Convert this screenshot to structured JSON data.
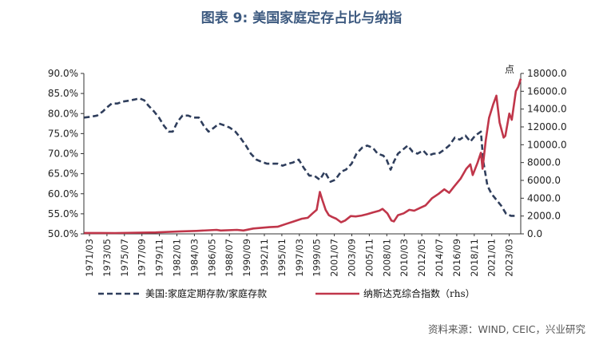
{
  "title": "图表 9:  美国家庭定存占比与纳指",
  "source": "资料来源：WIND, CEIC，兴业研究",
  "colors": {
    "deposit": "#2f3e5c",
    "nasdaq": "#c0364a",
    "title": "#3d5a80"
  },
  "chart_data": {
    "type": "line",
    "y_left": {
      "min": 50,
      "max": 90,
      "ticks": [
        "50.0%",
        "55.0%",
        "60.0%",
        "65.0%",
        "70.0%",
        "75.0%",
        "80.0%",
        "85.0%",
        "90.0%"
      ]
    },
    "y_right": {
      "min": 0,
      "max": 18000,
      "unit": "点",
      "ticks": [
        "0.0",
        "2000.0",
        "4000.0",
        "6000.0",
        "8000.0",
        "10000.0",
        "12000.0",
        "14000.0",
        "16000.0",
        "18000.0"
      ]
    },
    "x_ticks": [
      "1971/03",
      "1973/05",
      "1975/07",
      "1977/09",
      "1979/11",
      "1982/01",
      "1984/03",
      "1986/05",
      "1988/07",
      "1990/09",
      "1992/11",
      "1995/01",
      "1997/03",
      "1999/05",
      "2001/07",
      "2003/09",
      "2005/11",
      "2008/01",
      "2010/03",
      "2012/05",
      "2014/07",
      "2016/09",
      "2018/11",
      "2021/01",
      "2023/03"
    ],
    "x_range": [
      1971.17,
      2024.9
    ],
    "series": [
      {
        "name": "美国:家庭定期存款/家庭存款",
        "axis": "left",
        "style": "dashed",
        "x": [
          1971.2,
          1972.0,
          1972.8,
          1973.5,
          1974.0,
          1974.6,
          1975.3,
          1976.0,
          1976.7,
          1977.4,
          1978.0,
          1978.6,
          1979.1,
          1979.8,
          1980.4,
          1981.0,
          1981.6,
          1982.1,
          1982.7,
          1983.3,
          1984.0,
          1984.6,
          1985.3,
          1985.9,
          1986.5,
          1987.2,
          1987.8,
          1988.5,
          1989.1,
          1989.8,
          1990.4,
          1991.1,
          1991.7,
          1992.4,
          1993.0,
          1993.7,
          1994.3,
          1995.0,
          1995.6,
          1996.3,
          1996.9,
          1997.6,
          1998.2,
          1998.9,
          1999.5,
          2000.2,
          2000.8,
          2001.5,
          2002.1,
          2002.8,
          2003.4,
          2004.1,
          2004.7,
          2005.4,
          2006.0,
          2006.7,
          2007.3,
          2008.0,
          2008.4,
          2008.9,
          2009.3,
          2009.8,
          2010.4,
          2011.0,
          2011.6,
          2012.2,
          2012.9,
          2013.5,
          2014.2,
          2014.8,
          2015.5,
          2016.1,
          2016.8,
          2017.4,
          2018.1,
          2018.7,
          2019.3,
          2020.0,
          2020.3,
          2020.8,
          2021.3,
          2021.9,
          2022.5,
          2023.1,
          2023.7,
          2024.3
        ],
        "values": [
          79.0,
          79.2,
          79.5,
          80.5,
          81.5,
          82.5,
          82.5,
          83.0,
          83.2,
          83.5,
          83.8,
          83.3,
          82.0,
          80.5,
          79.0,
          77.0,
          75.5,
          75.5,
          78.0,
          79.5,
          79.5,
          79.0,
          79.0,
          77.0,
          75.5,
          76.5,
          77.5,
          77.0,
          76.5,
          75.5,
          74.0,
          72.0,
          70.0,
          68.5,
          68.0,
          67.5,
          67.5,
          67.5,
          67.0,
          67.5,
          67.8,
          68.5,
          66.5,
          64.5,
          64.5,
          63.5,
          65.5,
          63.0,
          63.5,
          65.5,
          66.0,
          67.5,
          70.0,
          71.5,
          72.0,
          71.5,
          70.0,
          69.5,
          68.5,
          66.0,
          68.0,
          70.0,
          71.0,
          72.0,
          70.5,
          70.0,
          70.8,
          69.5,
          70.0,
          70.0,
          71.0,
          72.0,
          74.0,
          73.5,
          74.5,
          73.0,
          74.5,
          75.5,
          68.0,
          62.0,
          60.0,
          58.5,
          57.0,
          55.0,
          54.5,
          54.5
        ]
      },
      {
        "name": "纳斯达克综合指数（rhs）",
        "axis": "right",
        "style": "solid",
        "x": [
          1971.2,
          1975.0,
          1980.0,
          1983.0,
          1985.0,
          1987.5,
          1988.0,
          1990.0,
          1990.8,
          1992.0,
          1994.0,
          1995.0,
          1996.0,
          1997.0,
          1998.0,
          1998.7,
          1999.3,
          1999.8,
          2000.2,
          2000.5,
          2000.9,
          2001.3,
          2001.7,
          2002.2,
          2002.8,
          2003.3,
          2004.0,
          2004.6,
          2005.3,
          2006.0,
          2006.7,
          2007.5,
          2007.9,
          2008.5,
          2009.0,
          2009.3,
          2009.8,
          2010.5,
          2011.2,
          2011.8,
          2012.5,
          2013.2,
          2014.0,
          2014.8,
          2015.5,
          2016.1,
          2016.7,
          2017.5,
          2018.2,
          2018.7,
          2019.0,
          2019.6,
          2020.0,
          2020.2,
          2020.6,
          2021.0,
          2021.5,
          2021.9,
          2022.3,
          2022.8,
          2023.0,
          2023.5,
          2023.8,
          2024.3,
          2024.6,
          2024.9
        ],
        "values": [
          100,
          90,
          160,
          280,
          330,
          450,
          380,
          450,
          380,
          600,
          750,
          800,
          1100,
          1400,
          1700,
          1800,
          2300,
          2700,
          4700,
          3800,
          2700,
          2100,
          1900,
          1700,
          1300,
          1500,
          2000,
          1950,
          2050,
          2200,
          2400,
          2600,
          2800,
          2300,
          1500,
          1400,
          2100,
          2300,
          2700,
          2600,
          2900,
          3200,
          4000,
          4500,
          5000,
          4600,
          5300,
          6200,
          7300,
          7800,
          6600,
          8000,
          9100,
          7300,
          10500,
          13000,
          14500,
          15500,
          12500,
          10800,
          11000,
          13500,
          12800,
          16000,
          16500,
          17400
        ]
      }
    ]
  },
  "legend": [
    {
      "label": "美国:家庭定期存款/家庭存款",
      "style": "dashed"
    },
    {
      "label": "纳斯达克综合指数（rhs）",
      "style": "solid"
    }
  ]
}
